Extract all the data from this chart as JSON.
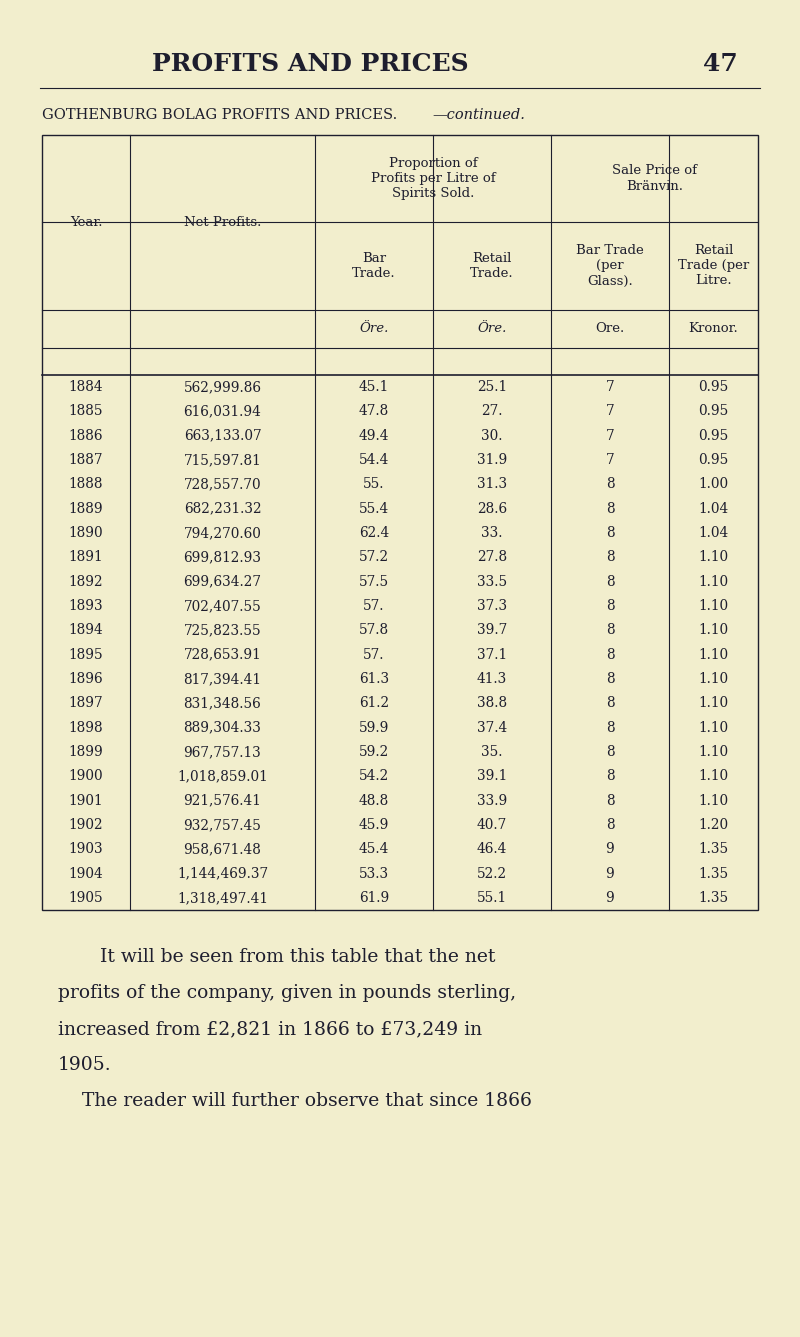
{
  "page_title": "PROFITS AND PRICES",
  "page_number": "47",
  "table_title_normal": "GOTHENBURG BOLAG PROFITS AND PRICES.",
  "table_title_italic": "—continued.",
  "bg_color": "#f2eecd",
  "text_color": "#1e1e2e",
  "rows": [
    [
      "1884",
      "562,999.86",
      "45.1",
      "25.1",
      "7",
      "0.95"
    ],
    [
      "1885",
      "616,031.94",
      "47.8",
      "27.",
      "7",
      "0.95"
    ],
    [
      "1886",
      "663,133.07",
      "49.4",
      "30.",
      "7",
      "0.95"
    ],
    [
      "1887",
      "715,597.81",
      "54.4",
      "31.9",
      "7",
      "0.95"
    ],
    [
      "1888",
      "728,557.70",
      "55.",
      "31.3",
      "8",
      "1.00"
    ],
    [
      "1889",
      "682,231.32",
      "55.4",
      "28.6",
      "8",
      "1.04"
    ],
    [
      "1890",
      "794,270.60",
      "62.4",
      "33.",
      "8",
      "1.04"
    ],
    [
      "1891",
      "699,812.93",
      "57.2",
      "27.8",
      "8",
      "1.10"
    ],
    [
      "1892",
      "699,634.27",
      "57.5",
      "33.5",
      "8",
      "1.10"
    ],
    [
      "1893",
      "702,407.55",
      "57.",
      "37.3",
      "8",
      "1.10"
    ],
    [
      "1894",
      "725,823.55",
      "57.8",
      "39.7",
      "8",
      "1.10"
    ],
    [
      "1895",
      "728,653.91",
      "57.",
      "37.1",
      "8",
      "1.10"
    ],
    [
      "1896",
      "817,394.41",
      "61.3",
      "41.3",
      "8",
      "1.10"
    ],
    [
      "1897",
      "831,348.56",
      "61.2",
      "38.8",
      "8",
      "1.10"
    ],
    [
      "1898",
      "889,304.33",
      "59.9",
      "37.4",
      "8",
      "1.10"
    ],
    [
      "1899",
      "967,757.13",
      "59.2",
      "35.",
      "8",
      "1.10"
    ],
    [
      "1900",
      "1,018,859.01",
      "54.2",
      "39.1",
      "8",
      "1.10"
    ],
    [
      "1901",
      "921,576.41",
      "48.8",
      "33.9",
      "8",
      "1.10"
    ],
    [
      "1902",
      "932,757.45",
      "45.9",
      "40.7",
      "8",
      "1.20"
    ],
    [
      "1903",
      "958,671.48",
      "45.4",
      "46.4",
      "9",
      "1.35"
    ],
    [
      "1904",
      "1,144,469.37",
      "53.3",
      "52.2",
      "9",
      "1.35"
    ],
    [
      "1905",
      "1,318,497.41",
      "61.9",
      "55.1",
      "9",
      "1.35"
    ]
  ],
  "footer_line1": "It will be seen from this table that the net",
  "footer_line2": "profits of the company, given in pounds sterling,",
  "footer_line3": "increased from £2,821 in 1866 to £73,249 in",
  "footer_line4": "1905.",
  "footer_line5": "    The reader will further observe that since 1866"
}
